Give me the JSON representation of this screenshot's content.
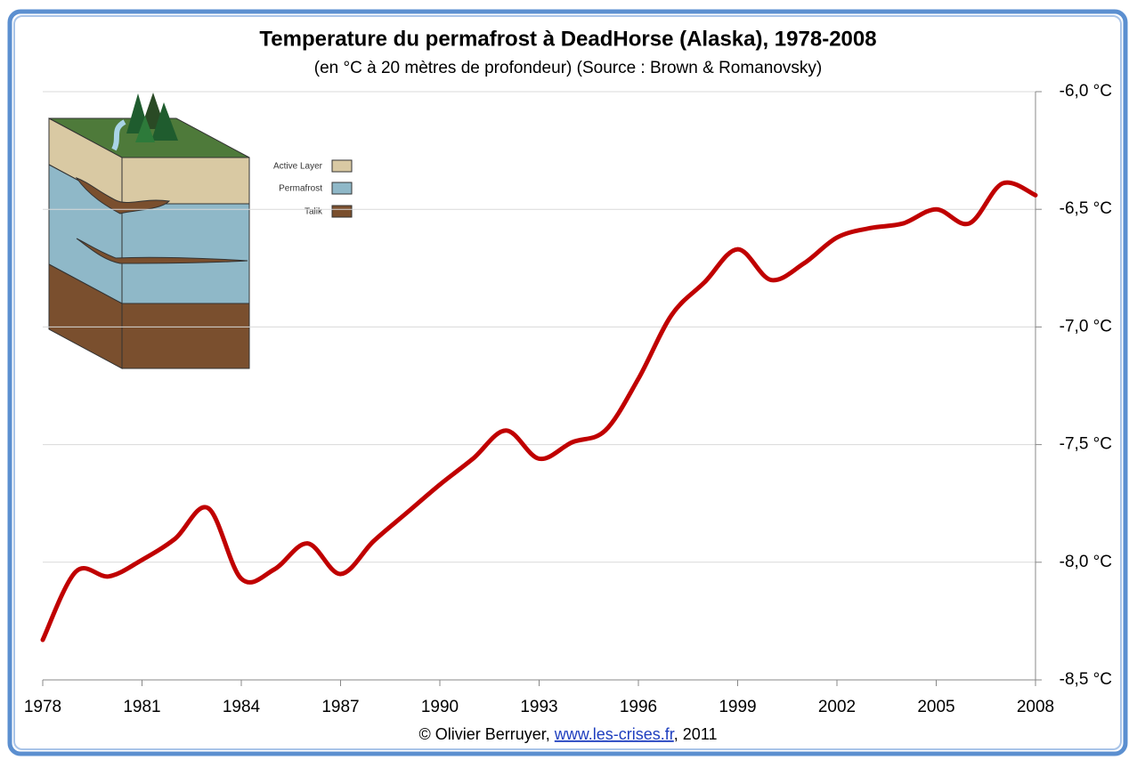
{
  "chart_data": {
    "type": "line",
    "title": "Temperature du permafrost à DeadHorse (Alaska), 1978-2008",
    "subtitle": "(en °C à 20 mètres de profondeur) (Source : Brown & Romanovsky)",
    "x": [
      1978,
      1979,
      1980,
      1981,
      1982,
      1983,
      1984,
      1985,
      1986,
      1987,
      1988,
      1989,
      1990,
      1991,
      1992,
      1993,
      1994,
      1995,
      1996,
      1997,
      1998,
      1999,
      2000,
      2001,
      2002,
      2003,
      2004,
      2005,
      2006,
      2007,
      2008
    ],
    "values": [
      -8.33,
      -8.04,
      -8.06,
      -7.99,
      -7.9,
      -7.77,
      -8.07,
      -8.03,
      -7.92,
      -8.05,
      -7.91,
      -7.79,
      -7.67,
      -7.56,
      -7.44,
      -7.56,
      -7.49,
      -7.44,
      -7.22,
      -6.95,
      -6.81,
      -6.67,
      -6.8,
      -6.73,
      -6.62,
      -6.58,
      -6.56,
      -6.5,
      -6.56,
      -6.39,
      -6.44
    ],
    "color": "#c00000",
    "xlim": [
      1978,
      2008
    ],
    "xticks": [
      1978,
      1981,
      1984,
      1987,
      1990,
      1993,
      1996,
      1999,
      2002,
      2005,
      2008
    ],
    "ylim": [
      -8.5,
      -6.0
    ],
    "yticks": [
      {
        "value": -8.5,
        "label": "-8,5 °C"
      },
      {
        "value": -8.0,
        "label": "-8,0 °C"
      },
      {
        "value": -7.5,
        "label": "-7,5 °C"
      },
      {
        "value": -7.0,
        "label": "-7,0 °C"
      },
      {
        "value": -6.5,
        "label": "-6,5 °C"
      },
      {
        "value": -6.0,
        "label": "-6,0 °C"
      }
    ],
    "grid": true,
    "illustration_legend": [
      "Active Layer",
      "Permafrost",
      "Talik"
    ],
    "credit": {
      "prefix": "© Olivier Berruyer,",
      "link": "www.les-crises.fr",
      "suffix": ", 2011"
    }
  }
}
